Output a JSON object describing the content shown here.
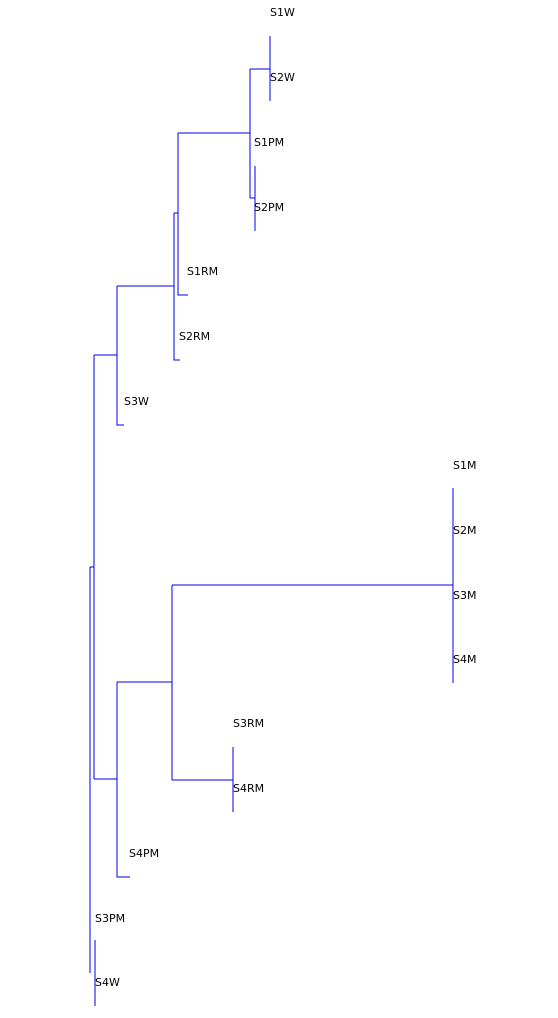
{
  "diagram": {
    "type": "dendrogram",
    "line_color": "#0000ee",
    "label_color": "#000000",
    "leaves": [
      {
        "label": "S1W"
      },
      {
        "label": "S2W"
      },
      {
        "label": "S1PM"
      },
      {
        "label": "S2PM"
      },
      {
        "label": "S1RM"
      },
      {
        "label": "S2RM"
      },
      {
        "label": "S3W"
      },
      {
        "label": "S1M"
      },
      {
        "label": "S2M"
      },
      {
        "label": "S3M"
      },
      {
        "label": "S4M"
      },
      {
        "label": "S3RM"
      },
      {
        "label": "S4RM"
      },
      {
        "label": "S4PM"
      },
      {
        "label": "S3PM"
      },
      {
        "label": "S4W"
      }
    ]
  }
}
